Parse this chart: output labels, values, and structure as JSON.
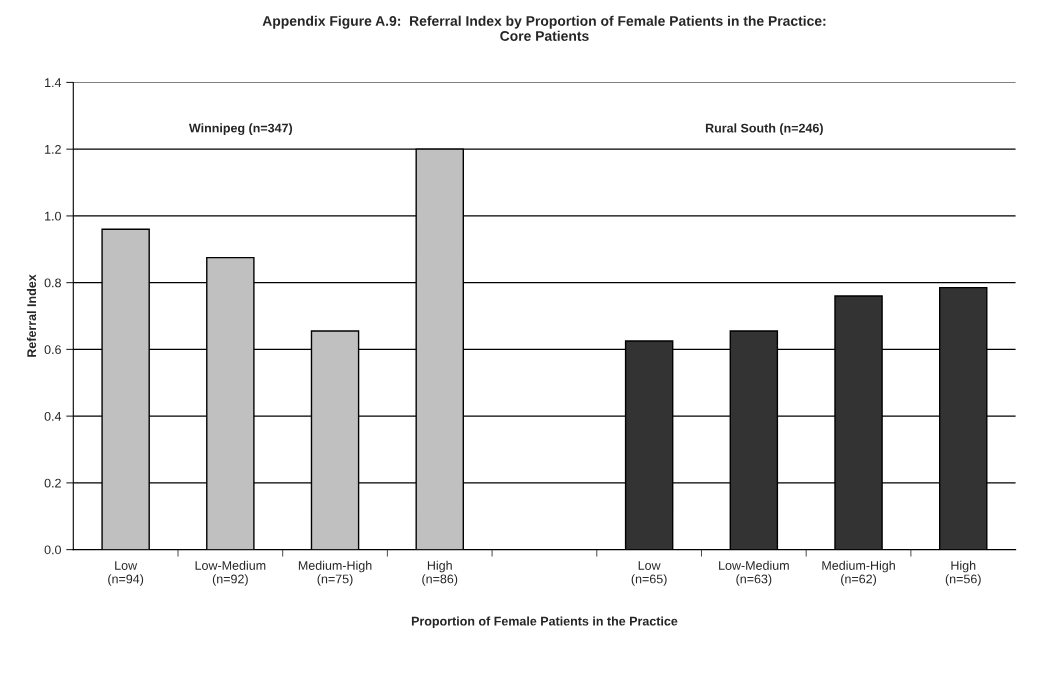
{
  "chart_data": {
    "type": "bar",
    "title": "Appendix Figure A.9:  Referral Index by Proportion of Female Patients in the Practice:\nCore Patients",
    "xlabel": "Proportion of Female Patients in the Practice",
    "ylabel": "Referral Index",
    "categories": [
      "Low\n(n=94)",
      "Low-Medium\n(n=92)",
      "Medium-High\n(n=75)",
      "High\n(n=86)",
      null,
      "Low\n(n=65)",
      "Low-Medium\n(n=63)",
      "Medium-High\n(n=62)",
      "High\n(n=56)"
    ],
    "series": [
      {
        "color": "#c0c0c0",
        "values": [
          0.96,
          0.875,
          0.655,
          1.2,
          null,
          null,
          null,
          null,
          null
        ]
      },
      {
        "color": "#333333",
        "values": [
          null,
          null,
          null,
          null,
          null,
          0.625,
          0.655,
          0.76,
          0.785
        ]
      }
    ],
    "ylim": [
      0,
      1.4
    ],
    "yticks": [
      {
        "value": 0,
        "label": "0.0"
      },
      {
        "value": 0.2,
        "label": "0.2"
      },
      {
        "value": 0.4,
        "label": "0.4"
      },
      {
        "value": 0.6,
        "label": "0.6"
      },
      {
        "value": 0.8,
        "label": "0.8"
      },
      {
        "value": 1.0,
        "label": "1.0"
      },
      {
        "value": 1.2,
        "label": "1.2"
      },
      {
        "value": 1.4,
        "label": "1.4"
      }
    ],
    "annotations": [
      "Winnipeg (n=347)",
      "Rural South (n=246)"
    ],
    "grid": "y",
    "legend": false
  }
}
